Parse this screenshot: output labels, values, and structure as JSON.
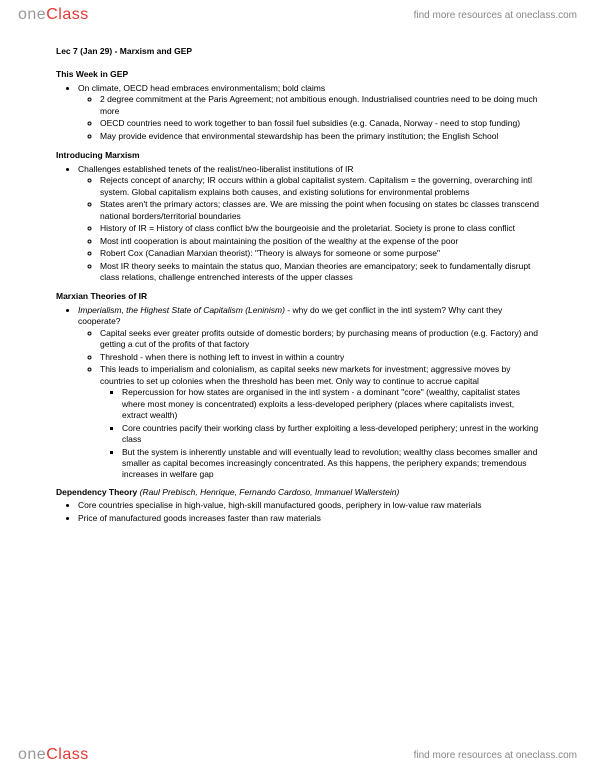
{
  "brand": {
    "part1": "one",
    "part2": "Class"
  },
  "tagline": "find more resources at oneclass.com",
  "title": "Lec 7 (Jan 29) - Marxism and GEP",
  "s1": {
    "head": "This Week in GEP",
    "b1": "On climate, OECD head embraces environmentalism; bold claims",
    "b1a": "2 degree commitment at the Paris Agreement; not ambitious enough. Industrialised countries need to be doing much more",
    "b1b": "OECD countries need to work together to ban fossil fuel subsidies (e.g. Canada, Norway - need to stop funding)",
    "b1c": "May provide evidence that environmental stewardship has been the primary institution; the English School"
  },
  "s2": {
    "head": "Introducing Marxism",
    "b1": "Challenges established tenets of the realist/neo-liberalist institutions of IR",
    "b1a": "Rejects concept of anarchy; IR occurs within a global capitalist system. Capitalism = the governing, overarching intl system. Global capitalism explains both causes, and existing solutions for environmental problems",
    "b1b": "States aren't the primary actors; classes are. We are missing the point when focusing on states bc classes transcend national borders/territorial boundaries",
    "b1c": "History of IR = History of class conflict b/w the bourgeoisie and the proletariat. Society is prone to class conflict",
    "b1d": "Most intl cooperation is about maintaining the position of the wealthy at the expense of the poor",
    "b1e": "Robert Cox (Canadian Marxian theorist): \"Theory is always for someone or some purpose\"",
    "b1f": "Most IR theory seeks to maintain the status quo, Marxian theories are emancipatory; seek to fundamentally disrupt class relations, challenge entrenched interests of the upper classes"
  },
  "s3": {
    "head": "Marxian Theories of IR",
    "b1_lead": "Imperialism, the Highest State of Capitalism (Leninism)",
    "b1_rest": " - why do we get conflict in the intl system? Why cant they cooperate?",
    "b1a": "Capital seeks ever greater profits outside of domestic borders; by purchasing means of production (e.g. Factory) and getting a cut of the profits of that factory",
    "b1b": "Threshold - when there is nothing left to invest in within a country",
    "b1c": "This leads to imperialism and colonialism, as capital seeks new markets for investment; aggressive moves by countries to set up colonies when the threshold has been met. Only way to continue to accrue capital",
    "b1c1": "Repercussion for how states are organised in the intl system - a dominant \"core\" (wealthy, capitalist states where most money is concentrated) exploits a less-developed periphery (places where capitalists invest, extract wealth)",
    "b1c2": "Core countries pacify their working class by further exploiting a less-developed periphery; unrest in the working class",
    "b1c3": "But the system is inherently unstable and will eventually lead to revolution; wealthy class becomes smaller and smaller as capital becomes increasingly concentrated. As this happens, the periphery expands; tremendous increases in welfare gap"
  },
  "s4": {
    "head": "Dependency Theory ",
    "head_tail": "(Raul Prebisch, Henrique, Fernando Cardoso, Immanuel Wallerstein)",
    "b1": "Core countries specialise in high-value, high-skill manufactured goods, periphery in low-value raw materials",
    "b2": "Price of manufactured goods increases faster than raw materials"
  }
}
